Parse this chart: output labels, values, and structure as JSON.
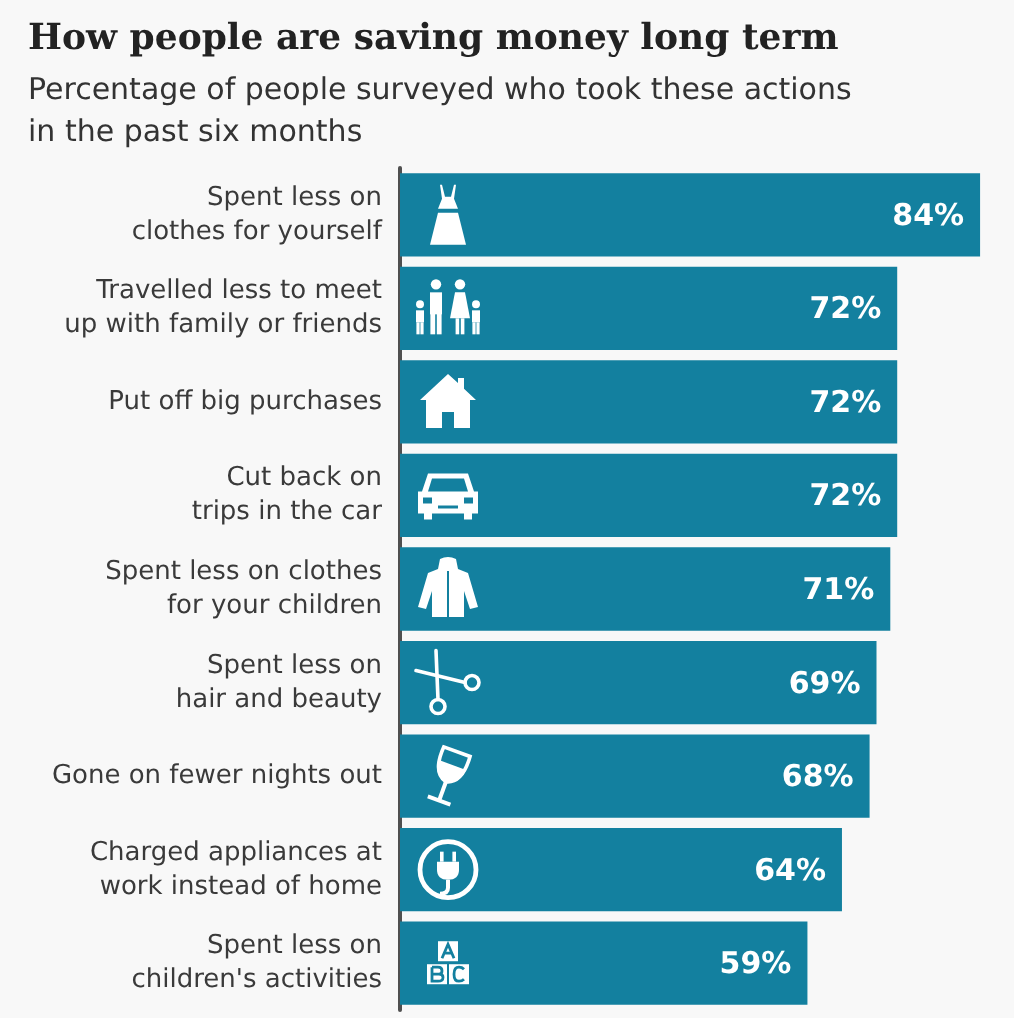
{
  "chart_data": {
    "type": "bar",
    "orientation": "horizontal",
    "title": "How people are saving money long term",
    "subtitle": "Percentage of people surveyed who took these actions in the past six months",
    "categories": [
      "Spent less on clothes for yourself",
      "Travelled less to meet up with family or friends",
      "Put off big purchases",
      "Cut back on trips in the car",
      "Spent less on clothes for your children",
      "Spent less on hair and beauty",
      "Gone on fewer nights out",
      "Charged appliances at work instead of home",
      "Spent less on children's activities"
    ],
    "values": [
      84,
      72,
      72,
      72,
      71,
      69,
      68,
      64,
      59
    ],
    "value_labels": [
      "84%",
      "72%",
      "72%",
      "72%",
      "71%",
      "69%",
      "68%",
      "64%",
      "59%"
    ],
    "color": "#13809f"
  }
}
